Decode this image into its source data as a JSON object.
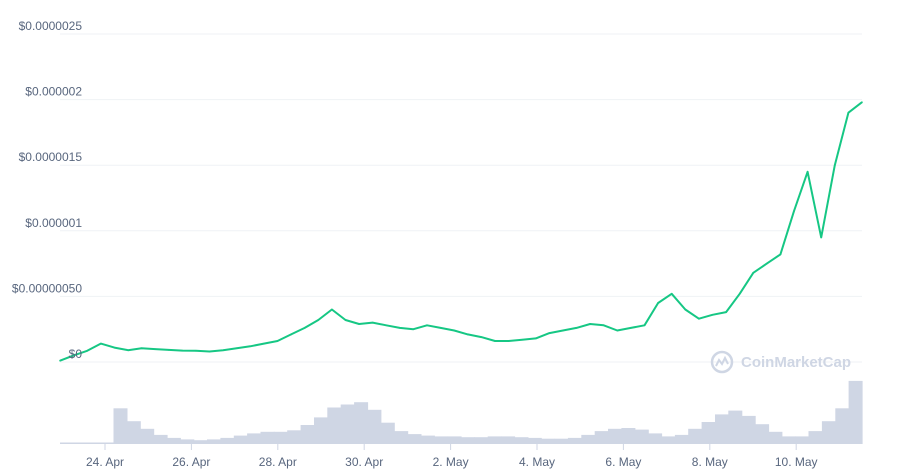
{
  "chart_data": {
    "type": "area",
    "series": [
      {
        "values": [
          1e-08,
          5e-08,
          8.5e-08,
          1.4e-07,
          1.1e-07,
          9e-08,
          1.05e-07,
          9.8e-08,
          9.2e-08,
          8.7e-08,
          8.5e-08,
          8e-08,
          9e-08,
          1.05e-07,
          1.2e-07,
          1.4e-07,
          1.6e-07,
          2.1e-07,
          2.6e-07,
          3.2e-07,
          4e-07,
          3.2e-07,
          2.9e-07,
          3e-07,
          2.8e-07,
          2.6e-07,
          2.5e-07,
          2.8e-07,
          2.6e-07,
          2.4e-07,
          2.1e-07,
          1.9e-07,
          1.6e-07,
          1.6e-07,
          1.7e-07,
          1.8e-07,
          2.2e-07,
          2.4e-07,
          2.6e-07,
          2.9e-07,
          2.8e-07,
          2.4e-07,
          2.6e-07,
          2.8e-07,
          4.5e-07,
          5.2e-07,
          4e-07,
          3.3e-07,
          3.6e-07,
          3.8e-07,
          5.2e-07,
          6.8e-07,
          7.5e-07,
          8.2e-07,
          1.15e-06,
          1.45e-06,
          9.5e-07,
          1.5e-06,
          1.9e-06,
          1.98e-06
        ]
      }
    ],
    "volume": [
      0.02,
      0.02,
      0.02,
      0.02,
      0.47,
      0.3,
      0.2,
      0.12,
      0.08,
      0.06,
      0.05,
      0.06,
      0.08,
      0.11,
      0.14,
      0.16,
      0.16,
      0.18,
      0.25,
      0.35,
      0.48,
      0.52,
      0.55,
      0.45,
      0.28,
      0.17,
      0.13,
      0.11,
      0.1,
      0.1,
      0.09,
      0.09,
      0.1,
      0.1,
      0.09,
      0.08,
      0.07,
      0.07,
      0.08,
      0.12,
      0.17,
      0.2,
      0.21,
      0.19,
      0.14,
      0.1,
      0.12,
      0.2,
      0.29,
      0.39,
      0.44,
      0.37,
      0.26,
      0.16,
      0.1,
      0.1,
      0.17,
      0.3,
      0.47,
      0.83
    ],
    "y_ticks": [
      "$0.0000025",
      "$0.000002",
      "$0.0000015",
      "$0.000001",
      "$0.00000050",
      "$0"
    ],
    "x_ticks": [
      "24. Apr",
      "26. Apr",
      "28. Apr",
      "30. Apr",
      "2. May",
      "4. May",
      "6. May",
      "8. May",
      "10. May"
    ],
    "ylim": [
      0,
      2.5e-06
    ],
    "line_color": "#16c784",
    "volume_color": "#cfd6e4",
    "grid": true,
    "watermark": "CoinMarketCap"
  }
}
